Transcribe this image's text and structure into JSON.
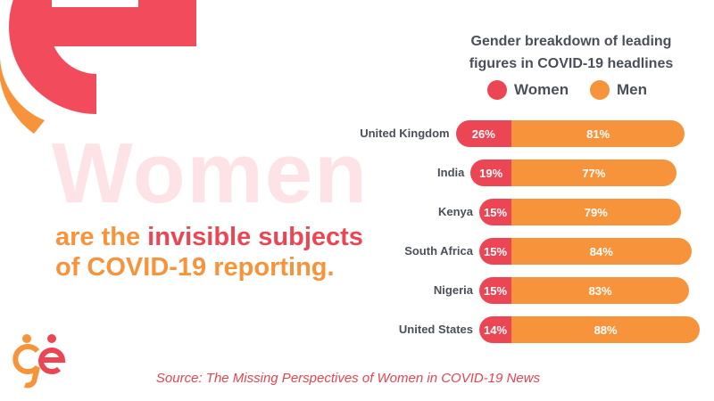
{
  "headline": {
    "big_word": "Women",
    "line1_pre": "are the ",
    "line1_highlight": "invisible subjects",
    "line2": "of COVID-19 reporting."
  },
  "source": "Source: The Missing Perspectives of Women in COVID-19 News",
  "colors": {
    "women": "#ec4655",
    "men": "#f7943b"
  },
  "chart_data": {
    "type": "bar",
    "title": "Gender breakdown of leading figures in COVID-19 headlines",
    "title_lines": [
      "Gender breakdown of leading",
      "figures in COVID-19 headlines"
    ],
    "legend": [
      "Women",
      "Men"
    ],
    "legend_placement": "top",
    "categories": [
      "United Kingdom",
      "India",
      "Kenya",
      "South Africa",
      "Nigeria",
      "United States"
    ],
    "series": [
      {
        "name": "Women",
        "values": [
          26,
          19,
          15,
          15,
          15,
          14
        ],
        "labels": [
          "26%",
          "19%",
          "15%",
          "15%",
          "15%",
          "14%"
        ]
      },
      {
        "name": "Men",
        "values": [
          81,
          77,
          79,
          84,
          83,
          88
        ],
        "labels": [
          "81%",
          "77%",
          "79%",
          "84%",
          "83%",
          "88%"
        ]
      }
    ]
  }
}
